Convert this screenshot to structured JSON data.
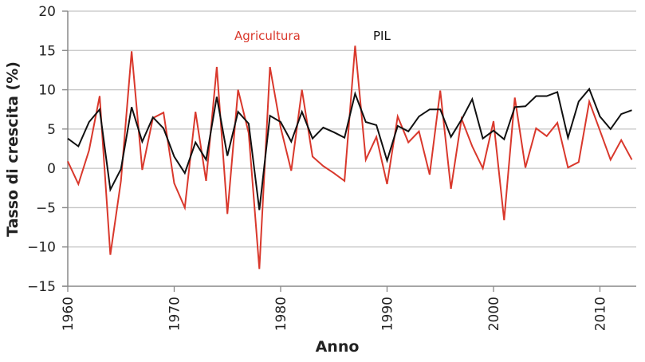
{
  "chart_data": {
    "type": "line",
    "title": "",
    "xlabel": "Anno",
    "ylabel": "Tasso di crescita (%)",
    "xlim": [
      1960,
      2013
    ],
    "ylim": [
      -15,
      20
    ],
    "grid": true,
    "x_ticks": [
      1960,
      1970,
      1980,
      1990,
      2000,
      2010
    ],
    "x_tick_labels": [
      "1960",
      "1970",
      "1980",
      "1990",
      "2000",
      "2010"
    ],
    "y_ticks": [
      -15,
      -10,
      -5,
      0,
      5,
      10,
      15,
      20
    ],
    "y_tick_labels": [
      "−15",
      "−10",
      "−5",
      "0",
      "5",
      "10",
      "15",
      "20"
    ],
    "x": [
      1960,
      1961,
      1962,
      1963,
      1964,
      1965,
      1966,
      1967,
      1968,
      1969,
      1970,
      1971,
      1972,
      1973,
      1974,
      1975,
      1976,
      1977,
      1978,
      1979,
      1980,
      1981,
      1982,
      1983,
      1984,
      1985,
      1986,
      1987,
      1988,
      1989,
      1990,
      1991,
      1992,
      1993,
      1994,
      1995,
      1996,
      1997,
      1998,
      1999,
      2000,
      2001,
      2002,
      2003,
      2004,
      2005,
      2006,
      2007,
      2008,
      2009,
      2010,
      2011,
      2012,
      2013
    ],
    "series": [
      {
        "name": "Agricultura",
        "color": "#d9382c",
        "values": [
          0.9,
          -2.0,
          2.3,
          9.2,
          -11.0,
          -1.6,
          14.9,
          -0.2,
          6.4,
          7.1,
          -1.9,
          -5.0,
          7.2,
          -1.6,
          12.9,
          -5.8,
          10.0,
          4.5,
          -12.8,
          12.9,
          5.2,
          -0.3,
          10.0,
          1.5,
          0.3,
          -0.6,
          -1.6,
          15.6,
          1.1,
          4.0,
          -2.0,
          6.6,
          3.3,
          4.7,
          -0.8,
          9.9,
          -2.6,
          6.3,
          2.8,
          0.0,
          6.0,
          -6.6,
          9.0,
          0.1,
          5.1,
          4.1,
          5.8,
          0.1,
          0.8,
          8.5,
          4.8,
          1.1,
          3.6,
          1.1
        ]
      },
      {
        "name": "PIL",
        "color": "#111111",
        "values": [
          3.8,
          2.8,
          5.9,
          7.5,
          -2.7,
          -0.1,
          7.8,
          3.4,
          6.5,
          5.1,
          1.5,
          -0.6,
          3.3,
          1.1,
          9.1,
          1.6,
          7.2,
          5.7,
          -5.3,
          6.7,
          5.9,
          3.4,
          7.2,
          3.8,
          5.2,
          4.6,
          3.9,
          9.5,
          5.9,
          5.5,
          1.0,
          5.4,
          4.7,
          6.6,
          7.5,
          7.5,
          4.0,
          6.2,
          8.8,
          3.8,
          4.8,
          3.7,
          7.8,
          7.9,
          9.2,
          9.2,
          9.7,
          3.9,
          8.5,
          10.1,
          6.6,
          5.0,
          6.9,
          7.4
        ]
      }
    ],
    "legend": "inline-labels-top"
  }
}
